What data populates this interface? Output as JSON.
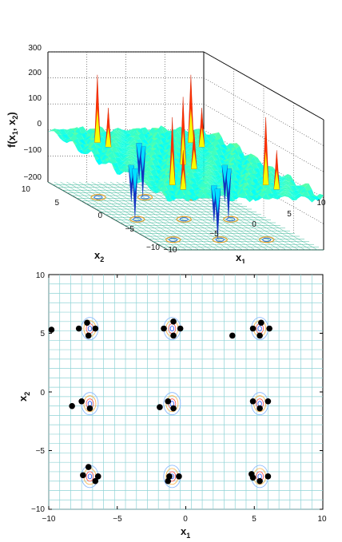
{
  "chart_data": [
    {
      "type": "surface",
      "zlabel": "f(x",
      "zlabel_sub1": "1",
      "zlabel_mid": ", x",
      "zlabel_sub2": "2",
      "zlabel_end": ")",
      "xlabel": "x",
      "xlabel_sub": "1",
      "ylabel": "x",
      "ylabel_sub": "2",
      "zticks": [
        "300",
        "200",
        "100",
        "0",
        "−100",
        "−200"
      ],
      "xticks": [
        "−10",
        "−5",
        "0",
        "5",
        "10"
      ],
      "yticks": [
        "10",
        "5",
        "0",
        "−5",
        "−10"
      ],
      "xlim": [
        -10,
        10
      ],
      "ylim": [
        -10,
        10
      ],
      "zlim": [
        -200,
        300
      ],
      "grid": true,
      "colormap": "jet",
      "peak_centers": [
        {
          "x1": -7,
          "x2": 5.5
        },
        {
          "x1": -1,
          "x2": 5.5
        },
        {
          "x1": 5,
          "x2": 5.5
        },
        {
          "x1": -7,
          "x2": -1
        },
        {
          "x1": -1,
          "x2": -1
        },
        {
          "x1": 5,
          "x2": -1
        },
        {
          "x1": -7,
          "x2": -7
        },
        {
          "x1": -1,
          "x2": -7
        },
        {
          "x1": 5,
          "x2": -7
        }
      ]
    },
    {
      "type": "contour",
      "xlabel": "x",
      "xlabel_sub": "1",
      "ylabel": "x",
      "ylabel_sub": "2",
      "xticks": [
        "−10",
        "−5",
        "0",
        "5",
        "10"
      ],
      "yticks": [
        "10",
        "5",
        "0",
        "−5",
        "−10"
      ],
      "xlim": [
        -10,
        10
      ],
      "ylim": [
        -10,
        10
      ],
      "grid": true,
      "points": [
        {
          "x": -9.8,
          "y": 5.3
        },
        {
          "x": -7.8,
          "y": 5.4
        },
        {
          "x": -7.2,
          "y": 5.9
        },
        {
          "x": -6.6,
          "y": 5.4
        },
        {
          "x": -7.1,
          "y": 4.8
        },
        {
          "x": -1.6,
          "y": 5.4
        },
        {
          "x": -0.9,
          "y": 6.0
        },
        {
          "x": -0.4,
          "y": 5.4
        },
        {
          "x": -0.9,
          "y": 4.8
        },
        {
          "x": 3.4,
          "y": 4.8
        },
        {
          "x": 4.9,
          "y": 5.4
        },
        {
          "x": 5.5,
          "y": 5.9
        },
        {
          "x": 6.1,
          "y": 5.4
        },
        {
          "x": 5.4,
          "y": 4.8
        },
        {
          "x": -8.3,
          "y": -1.2
        },
        {
          "x": -7.6,
          "y": -0.8
        },
        {
          "x": -7.0,
          "y": -1.4
        },
        {
          "x": -1.9,
          "y": -1.3
        },
        {
          "x": -1.3,
          "y": -0.8
        },
        {
          "x": -0.9,
          "y": -1.4
        },
        {
          "x": 4.9,
          "y": -0.8
        },
        {
          "x": 5.4,
          "y": -1.4
        },
        {
          "x": 6.0,
          "y": -0.8
        },
        {
          "x": -7.1,
          "y": -6.4
        },
        {
          "x": -7.5,
          "y": -7.1
        },
        {
          "x": -6.6,
          "y": -7.6
        },
        {
          "x": -6.4,
          "y": -7.2
        },
        {
          "x": -1.2,
          "y": -7.2
        },
        {
          "x": -1.3,
          "y": -7.6
        },
        {
          "x": -0.5,
          "y": -7.2
        },
        {
          "x": 4.8,
          "y": -7.0
        },
        {
          "x": 5.4,
          "y": -7.6
        },
        {
          "x": 6.0,
          "y": -7.2
        },
        {
          "x": 4.9,
          "y": -7.3
        }
      ],
      "cluster_centers": [
        {
          "x": -7,
          "y": 5.4
        },
        {
          "x": -1,
          "y": 5.4
        },
        {
          "x": 5.4,
          "y": 5.4
        },
        {
          "x": -7,
          "y": -1
        },
        {
          "x": -1,
          "y": -1
        },
        {
          "x": 5.4,
          "y": -1
        },
        {
          "x": -7,
          "y": -7.2
        },
        {
          "x": -1,
          "y": -7.2
        },
        {
          "x": 5.4,
          "y": -7.2
        }
      ]
    }
  ]
}
